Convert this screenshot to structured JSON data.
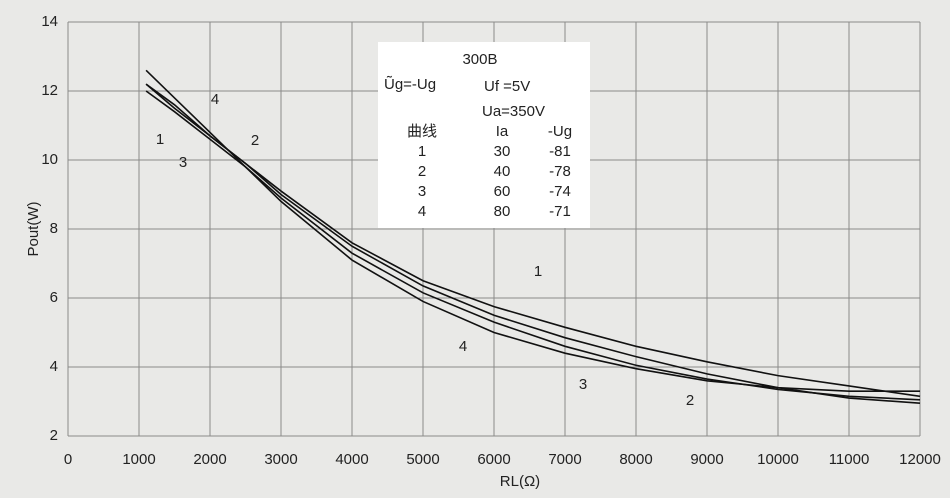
{
  "chart_data": {
    "type": "line",
    "x_label": "RL(Ω)",
    "y_label": "Pout(W)",
    "x": [
      1100,
      1500,
      2000,
      2500,
      3000,
      4000,
      5000,
      6000,
      7000,
      8000,
      9000,
      10000,
      11000,
      12000
    ],
    "series": [
      {
        "name": "1",
        "color": "#111111",
        "values": [
          12.2,
          11.5,
          10.7,
          9.9,
          9.1,
          7.6,
          6.5,
          5.75,
          5.15,
          4.6,
          4.15,
          3.75,
          3.45,
          3.15
        ]
      },
      {
        "name": "2",
        "color": "#111111",
        "values": [
          12.2,
          11.6,
          10.7,
          9.9,
          9.0,
          7.5,
          6.35,
          5.5,
          4.85,
          4.3,
          3.8,
          3.4,
          3.1,
          2.95
        ]
      },
      {
        "name": "3",
        "color": "#111111",
        "values": [
          12.0,
          11.4,
          10.6,
          9.8,
          8.9,
          7.3,
          6.15,
          5.3,
          4.6,
          4.05,
          3.65,
          3.35,
          3.15,
          3.05
        ]
      },
      {
        "name": "4",
        "color": "#111111",
        "values": [
          12.6,
          11.8,
          10.8,
          9.8,
          8.8,
          7.1,
          5.9,
          5.0,
          4.4,
          3.95,
          3.6,
          3.4,
          3.3,
          3.3
        ]
      }
    ],
    "xlim": [
      0,
      12000
    ],
    "xticks": [
      0,
      1000,
      2000,
      3000,
      4000,
      5000,
      6000,
      7000,
      8000,
      9000,
      10000,
      11000,
      12000
    ],
    "ylim": [
      2,
      14
    ],
    "yticks": [
      2,
      4,
      6,
      8,
      10,
      12,
      14
    ],
    "grid": true,
    "annotations": {
      "tube": "300B",
      "ug": "Ũg=-Ug",
      "uf": "Uf =5V",
      "ua": "Ua=350V",
      "table": {
        "header": [
          "曲线",
          "Ia",
          "-Ug"
        ],
        "rows": [
          [
            1,
            30,
            -81
          ],
          [
            2,
            40,
            -78
          ],
          [
            3,
            60,
            -74
          ],
          [
            4,
            80,
            -71
          ]
        ]
      }
    }
  }
}
